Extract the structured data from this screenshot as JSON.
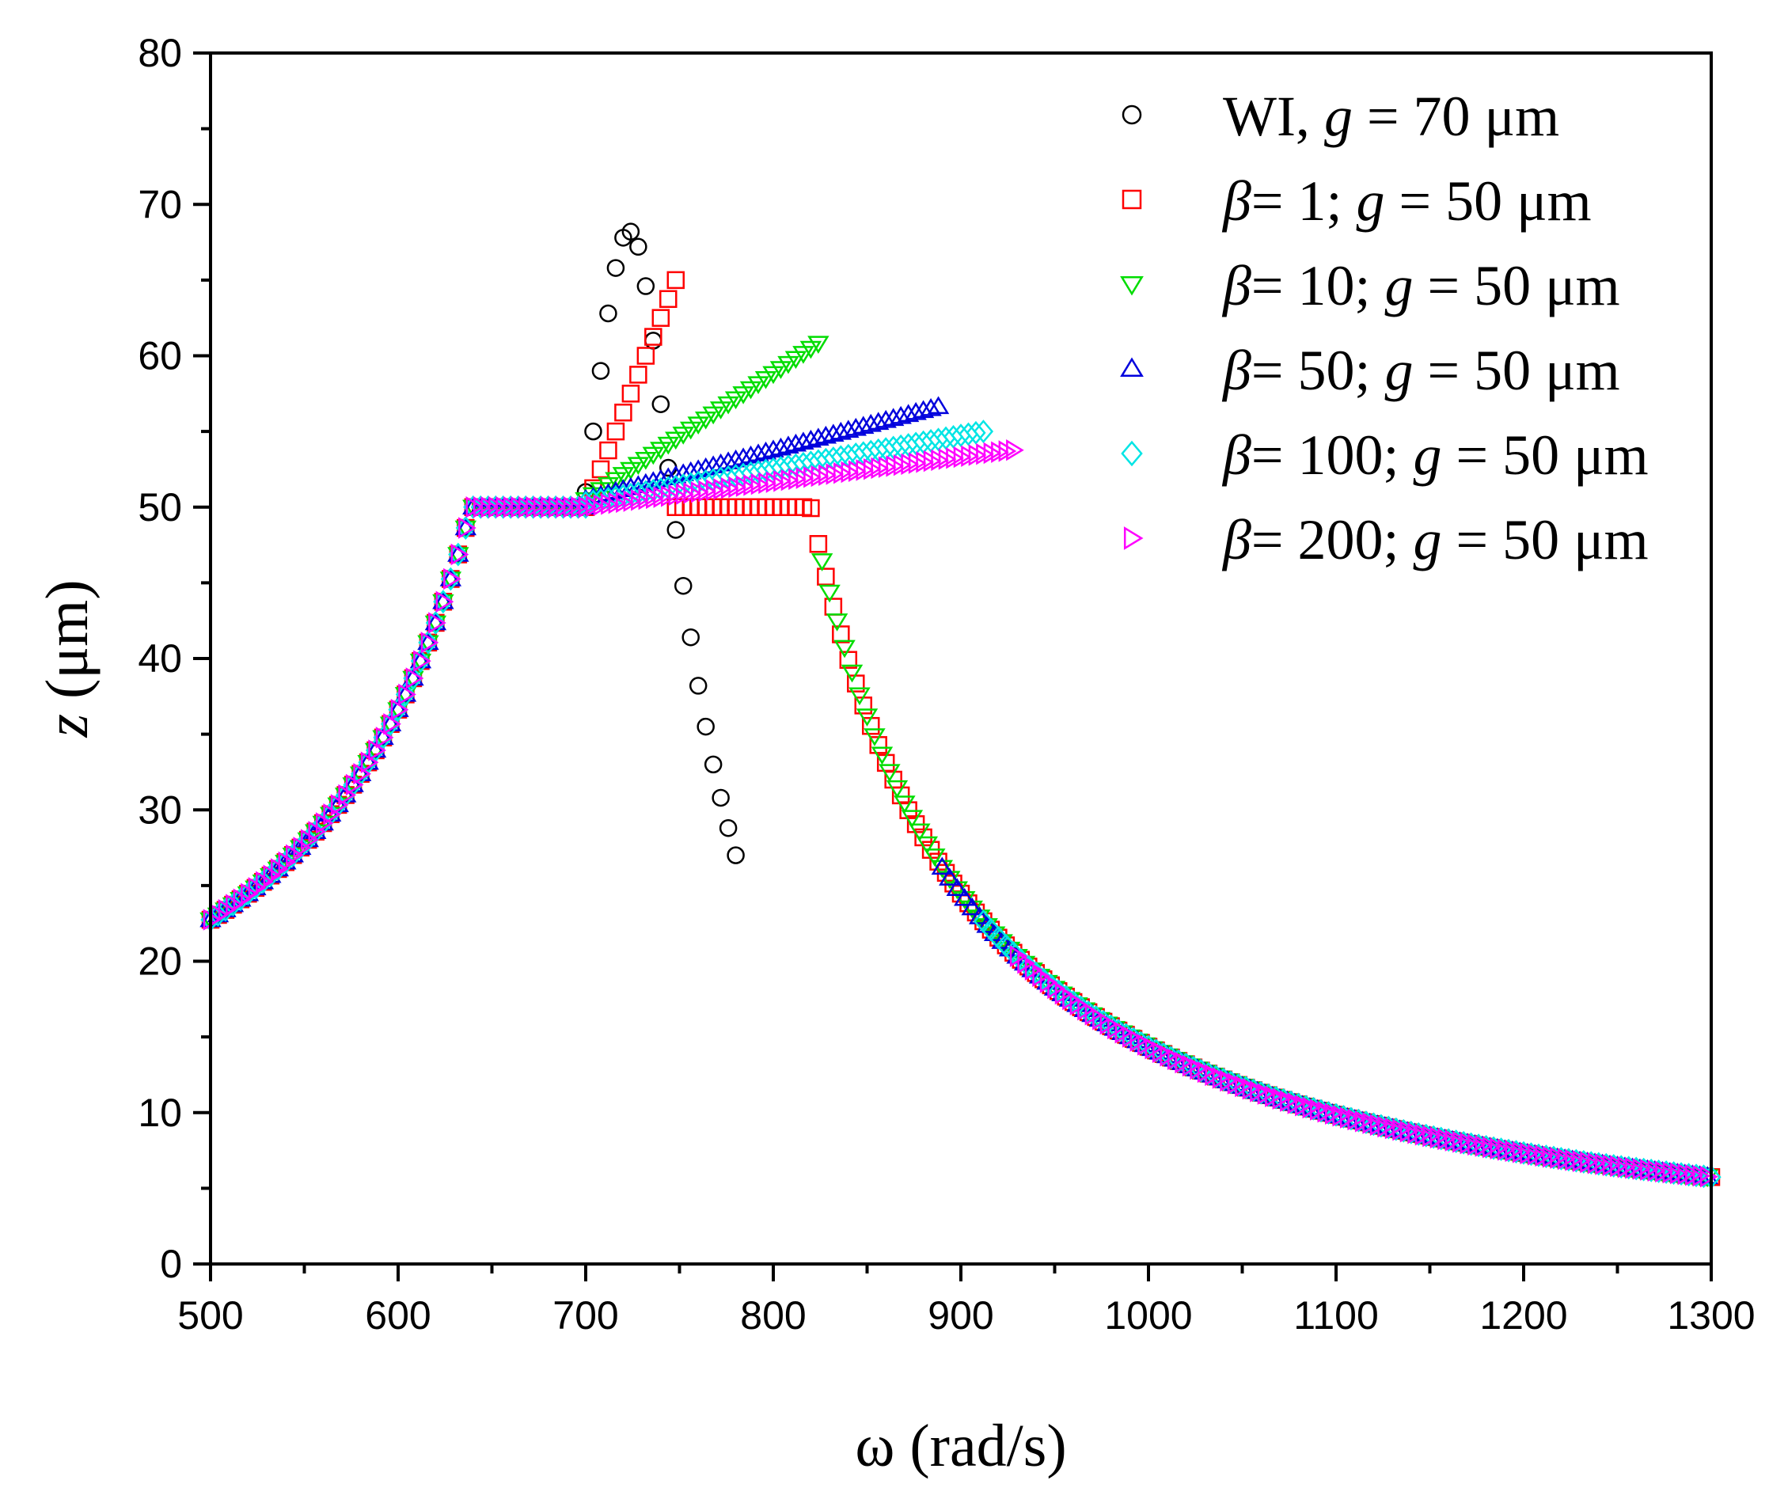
{
  "chart_data": {
    "type": "scatter",
    "xlabel": "ω (rad/s)",
    "ylabel": {
      "var": "z",
      "unit": " (μm)"
    },
    "xlim": [
      500,
      1300
    ],
    "ylim": [
      0,
      80
    ],
    "xticks": [
      "500",
      "600",
      "700",
      "800",
      "900",
      "1000",
      "1100",
      "1200",
      "1300"
    ],
    "yticks": [
      "0",
      "10",
      "20",
      "30",
      "40",
      "50",
      "60",
      "70",
      "80"
    ],
    "legend_position": "top-right",
    "resonance_center": 735,
    "series": [
      {
        "name": "WI, g = 70 μm",
        "legend": {
          "pre": "WI, ",
          "var": "g",
          "post": " = 70 μm"
        },
        "marker": "circle",
        "color": "#000000",
        "points": [
          [
            700,
            51.0
          ],
          [
            704,
            55.0
          ],
          [
            708,
            59.0
          ],
          [
            712,
            62.8
          ],
          [
            716,
            65.8
          ],
          [
            720,
            67.8
          ],
          [
            724,
            68.2
          ],
          [
            728,
            67.2
          ],
          [
            732,
            64.6
          ],
          [
            736,
            61.0
          ],
          [
            740,
            56.8
          ],
          [
            744,
            52.6
          ],
          [
            748,
            48.5
          ],
          [
            752,
            44.8
          ],
          [
            756,
            41.4
          ],
          [
            760,
            38.2
          ],
          [
            764,
            35.5
          ],
          [
            768,
            33.0
          ],
          [
            772,
            30.8
          ],
          [
            776,
            28.8
          ],
          [
            780,
            27.0
          ]
        ]
      },
      {
        "name": "β = 1; g = 50 μm",
        "legend": {
          "pre": "",
          "beta": "β",
          "mid": "= 1; ",
          "var": "g",
          "post": " = 50 μm"
        },
        "marker": "square",
        "color": "#ff0000",
        "lower_end": 748,
        "lower_peak": 50.0,
        "upper_range": [
          700,
          748
        ],
        "upper_values": [
          50.0,
          65.0
        ]
      },
      {
        "name": "β = 10; g = 50 μm",
        "legend": {
          "pre": "",
          "beta": "β",
          "mid": "= 10;  ",
          "var": "g",
          "post": " = 50 μm"
        },
        "marker": "triangle-down",
        "color": "#00dd00",
        "lower_end": 826,
        "lower_peak": 50.0,
        "upper_range": [
          700,
          826
        ],
        "upper_values": [
          50.5,
          61.0
        ]
      },
      {
        "name": "β = 50; g = 50 μm",
        "legend": {
          "pre": "",
          "beta": "β",
          "mid": "= 50; ",
          "var": "g",
          "post": " = 50 μm"
        },
        "marker": "triangle-up",
        "color": "#0000dd",
        "lower_end": 890,
        "lower_peak": 50.0,
        "upper_range": [
          700,
          890
        ],
        "upper_values": [
          50.5,
          56.7
        ]
      },
      {
        "name": "β = 100; g = 50 μm",
        "legend": {
          "pre": "",
          "beta": "β",
          "mid": "= 100; ",
          "var": "g",
          "post": " = 50 μm"
        },
        "marker": "diamond",
        "color": "#00e5e5",
        "lower_end": 912,
        "lower_peak": 50.0,
        "upper_range": [
          700,
          912
        ],
        "upper_values": [
          50.3,
          55.0
        ]
      },
      {
        "name": "β = 200; g = 50 μm",
        "legend": {
          "pre": "",
          "beta": "β",
          "mid": "= 200; ",
          "var": "g",
          "post": " = 50 μm"
        },
        "marker": "triangle-right",
        "color": "#ff00ff",
        "lower_end": 930,
        "lower_peak": 50.0,
        "upper_range": [
          700,
          930
        ],
        "upper_values": [
          50.0,
          53.8
        ]
      }
    ]
  }
}
